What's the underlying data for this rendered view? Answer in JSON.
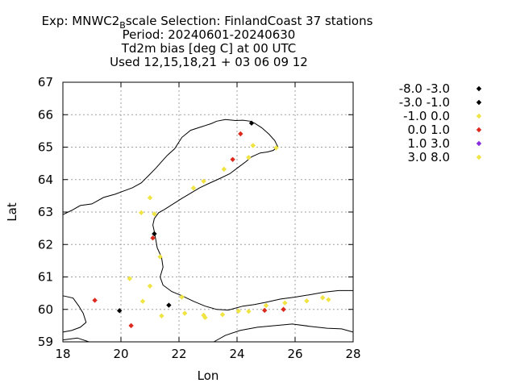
{
  "chart_data": {
    "type": "scatter",
    "title": {
      "line1_prefix": "Exp: MNWC2",
      "line1_sub": "B",
      "line1_suffix": "scale   Selection: FinlandCoast      37 stations",
      "line2": "Period: 20240601-20240630",
      "line3": "Td2m bias [deg C] at  00 UTC",
      "line4": "Used 12,15,18,21 + 03 06 09 12"
    },
    "xlabel": "Lon",
    "ylabel": "Lat",
    "xlim": [
      18,
      28
    ],
    "ylim": [
      59,
      67
    ],
    "xticks": [
      "18",
      "20",
      "22",
      "24",
      "26",
      "28"
    ],
    "yticks": [
      "59",
      "60",
      "61",
      "62",
      "63",
      "64",
      "65",
      "66",
      "67"
    ],
    "grid": true,
    "legend_position": "right",
    "classes": [
      {
        "label": "-8.0 -3.0",
        "color": "#000000"
      },
      {
        "label": "-3.0 -1.0",
        "color": "#000000"
      },
      {
        "label": "-1.0 0.0",
        "color": "#f0e442"
      },
      {
        "label": "0.0 1.0",
        "color": "#dc2a1e"
      },
      {
        "label": "1.0 3.0",
        "color": "#8a2be2"
      },
      {
        "label": "3.0 8.0",
        "color": "#f0e442"
      }
    ],
    "points": [
      {
        "lon": 24.5,
        "lat": 65.74,
        "cls": 0
      },
      {
        "lon": 21.15,
        "lat": 62.33,
        "cls": 0
      },
      {
        "lon": 19.95,
        "lat": 59.96,
        "cls": 1
      },
      {
        "lon": 21.65,
        "lat": 60.13,
        "cls": 1
      },
      {
        "lon": 24.12,
        "lat": 65.41,
        "cls": 3
      },
      {
        "lon": 23.85,
        "lat": 64.62,
        "cls": 3
      },
      {
        "lon": 21.1,
        "lat": 62.2,
        "cls": 3
      },
      {
        "lon": 19.1,
        "lat": 60.28,
        "cls": 3
      },
      {
        "lon": 20.35,
        "lat": 59.5,
        "cls": 3
      },
      {
        "lon": 24.95,
        "lat": 59.97,
        "cls": 3
      },
      {
        "lon": 25.6,
        "lat": 60.0,
        "cls": 3
      },
      {
        "lon": 24.55,
        "lat": 65.05,
        "cls": 2
      },
      {
        "lon": 25.35,
        "lat": 64.98,
        "cls": 2
      },
      {
        "lon": 24.4,
        "lat": 64.68,
        "cls": 2
      },
      {
        "lon": 23.55,
        "lat": 64.32,
        "cls": 2
      },
      {
        "lon": 22.85,
        "lat": 63.95,
        "cls": 2
      },
      {
        "lon": 22.5,
        "lat": 63.74,
        "cls": 2
      },
      {
        "lon": 21.0,
        "lat": 63.44,
        "cls": 2
      },
      {
        "lon": 20.7,
        "lat": 62.98,
        "cls": 2
      },
      {
        "lon": 21.15,
        "lat": 62.94,
        "cls": 2
      },
      {
        "lon": 21.35,
        "lat": 61.62,
        "cls": 2
      },
      {
        "lon": 21.0,
        "lat": 60.72,
        "cls": 2
      },
      {
        "lon": 20.75,
        "lat": 60.25,
        "cls": 2
      },
      {
        "lon": 22.1,
        "lat": 60.38,
        "cls": 2
      },
      {
        "lon": 22.2,
        "lat": 59.88,
        "cls": 2
      },
      {
        "lon": 21.4,
        "lat": 59.8,
        "cls": 2
      },
      {
        "lon": 22.85,
        "lat": 59.82,
        "cls": 2
      },
      {
        "lon": 22.9,
        "lat": 59.75,
        "cls": 2
      },
      {
        "lon": 23.5,
        "lat": 59.84,
        "cls": 2
      },
      {
        "lon": 24.05,
        "lat": 59.95,
        "cls": 2
      },
      {
        "lon": 24.4,
        "lat": 59.94,
        "cls": 2
      },
      {
        "lon": 25.0,
        "lat": 60.12,
        "cls": 2
      },
      {
        "lon": 25.65,
        "lat": 60.2,
        "cls": 2
      },
      {
        "lon": 26.4,
        "lat": 60.26,
        "cls": 2
      },
      {
        "lon": 26.95,
        "lat": 60.36,
        "cls": 2
      },
      {
        "lon": 27.15,
        "lat": 60.3,
        "cls": 2
      },
      {
        "lon": 20.3,
        "lat": 60.95,
        "cls": 2
      }
    ]
  },
  "coastline": [
    [
      [
        18.0,
        62.92
      ],
      [
        18.3,
        63.05
      ],
      [
        18.6,
        63.2
      ],
      [
        19.0,
        63.25
      ],
      [
        19.4,
        63.45
      ],
      [
        19.8,
        63.55
      ],
      [
        20.1,
        63.65
      ],
      [
        20.4,
        63.75
      ],
      [
        20.7,
        63.9
      ],
      [
        20.95,
        64.12
      ],
      [
        21.2,
        64.35
      ],
      [
        21.4,
        64.55
      ],
      [
        21.6,
        64.75
      ],
      [
        21.85,
        64.95
      ],
      [
        22.1,
        65.3
      ],
      [
        22.4,
        65.52
      ],
      [
        22.75,
        65.62
      ],
      [
        23.1,
        65.72
      ],
      [
        23.3,
        65.8
      ],
      [
        23.6,
        65.85
      ],
      [
        23.95,
        65.82
      ],
      [
        24.2,
        65.83
      ],
      [
        24.45,
        65.8
      ],
      [
        24.6,
        65.74
      ],
      [
        24.85,
        65.6
      ],
      [
        25.1,
        65.4
      ],
      [
        25.3,
        65.2
      ],
      [
        25.4,
        65.02
      ],
      [
        25.25,
        64.9
      ],
      [
        25.05,
        64.85
      ],
      [
        24.8,
        64.82
      ],
      [
        24.5,
        64.7
      ],
      [
        24.3,
        64.55
      ],
      [
        24.0,
        64.35
      ],
      [
        23.75,
        64.18
      ],
      [
        23.4,
        64.03
      ],
      [
        23.0,
        63.87
      ],
      [
        22.7,
        63.74
      ],
      [
        22.4,
        63.58
      ],
      [
        22.1,
        63.42
      ],
      [
        21.8,
        63.25
      ],
      [
        21.5,
        63.08
      ],
      [
        21.3,
        62.98
      ],
      [
        21.15,
        62.8
      ],
      [
        21.1,
        62.6
      ],
      [
        21.15,
        62.4
      ],
      [
        21.2,
        62.15
      ],
      [
        21.25,
        61.9
      ],
      [
        21.4,
        61.6
      ],
      [
        21.45,
        61.3
      ],
      [
        21.35,
        61.0
      ],
      [
        21.45,
        60.75
      ],
      [
        21.75,
        60.55
      ],
      [
        22.1,
        60.42
      ],
      [
        22.5,
        60.25
      ],
      [
        22.9,
        60.1
      ],
      [
        23.3,
        60.0
      ],
      [
        23.7,
        59.98
      ],
      [
        24.2,
        60.1
      ],
      [
        24.6,
        60.15
      ],
      [
        25.0,
        60.22
      ],
      [
        25.5,
        60.32
      ],
      [
        26.0,
        60.38
      ],
      [
        26.5,
        60.45
      ],
      [
        27.0,
        60.53
      ],
      [
        27.5,
        60.58
      ],
      [
        28.0,
        60.58
      ]
    ],
    [
      [
        18.0,
        60.42
      ],
      [
        18.35,
        60.35
      ],
      [
        18.55,
        60.1
      ],
      [
        18.7,
        59.88
      ],
      [
        18.8,
        59.6
      ],
      [
        18.6,
        59.45
      ],
      [
        18.3,
        59.35
      ],
      [
        18.0,
        59.3
      ]
    ],
    [
      [
        18.0,
        59.06
      ],
      [
        18.5,
        59.12
      ],
      [
        18.9,
        59.0
      ]
    ],
    [
      [
        23.2,
        59.0
      ],
      [
        23.6,
        59.2
      ],
      [
        24.1,
        59.35
      ],
      [
        24.7,
        59.45
      ],
      [
        25.3,
        59.5
      ],
      [
        25.9,
        59.55
      ],
      [
        26.5,
        59.48
      ],
      [
        27.1,
        59.42
      ],
      [
        27.6,
        59.4
      ],
      [
        28.0,
        59.3
      ]
    ]
  ]
}
